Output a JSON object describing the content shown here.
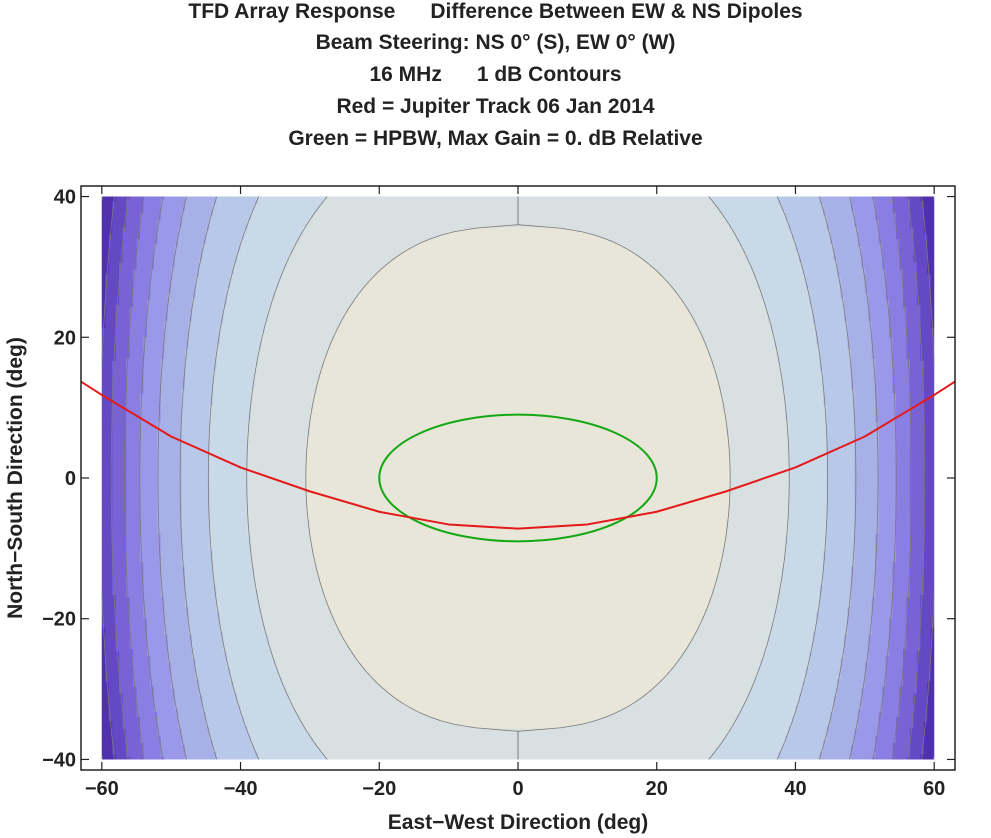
{
  "chart_data": {
    "type": "contour",
    "title_lines": [
      "TFD Array Response      Difference Between EW & NS Dipoles",
      "Beam Steering: NS 0° (S), EW 0° (W)",
      "16 MHz      1 dB Contours",
      "Red = Jupiter Track 06 Jan 2014",
      "Green = HPBW, Max Gain = 0. dB Relative"
    ],
    "xlabel": "East−West Direction (deg)",
    "ylabel": "North−South Direction (deg)",
    "xlim": [
      -63,
      63
    ],
    "ylim": [
      -41.5,
      41.5
    ],
    "data_xlim": [
      -60,
      60
    ],
    "data_ylim": [
      -40,
      40
    ],
    "x_ticks": [
      -60,
      -40,
      -20,
      0,
      20,
      40,
      60
    ],
    "x_tick_labels": [
      "−60",
      "−40",
      "−20",
      "0",
      "20",
      "40",
      "60"
    ],
    "y_ticks": [
      -40,
      -20,
      0,
      20,
      40
    ],
    "y_tick_labels": [
      "−40",
      "−20",
      "0",
      "20",
      "40"
    ],
    "contour_step_db": 1,
    "contour_levels_db": [
      -1,
      -2,
      -3,
      -4,
      -5,
      -6,
      -7,
      -8,
      -9,
      -10
    ],
    "contour_level_colors": [
      "#d9e0e2",
      "#c9d9e8",
      "#b8c8e8",
      "#a8b0e8",
      "#9a98e8",
      "#8a7ee2",
      "#7862d6",
      "#6448c4",
      "#5030ac",
      "#3c1a8c"
    ],
    "center_region_color": "#e8e6d8",
    "contour_line_color": "#7a7a7a",
    "hpbw_contour": {
      "color": "#14a814",
      "center": [
        0,
        0
      ],
      "x_semi_axis": 20,
      "y_semi_axis": 9
    },
    "jupiter_track": {
      "color": "#e41a1a",
      "x": [
        -63,
        -60,
        -50,
        -40,
        -30,
        -20,
        -10,
        0,
        10,
        20,
        30,
        40,
        50,
        60,
        63
      ],
      "y": [
        13.7,
        11.8,
        5.9,
        1.5,
        -1.9,
        -4.8,
        -6.6,
        -7.2,
        -6.6,
        -4.8,
        -1.9,
        1.5,
        5.9,
        11.8,
        13.7
      ]
    },
    "grid": false
  }
}
